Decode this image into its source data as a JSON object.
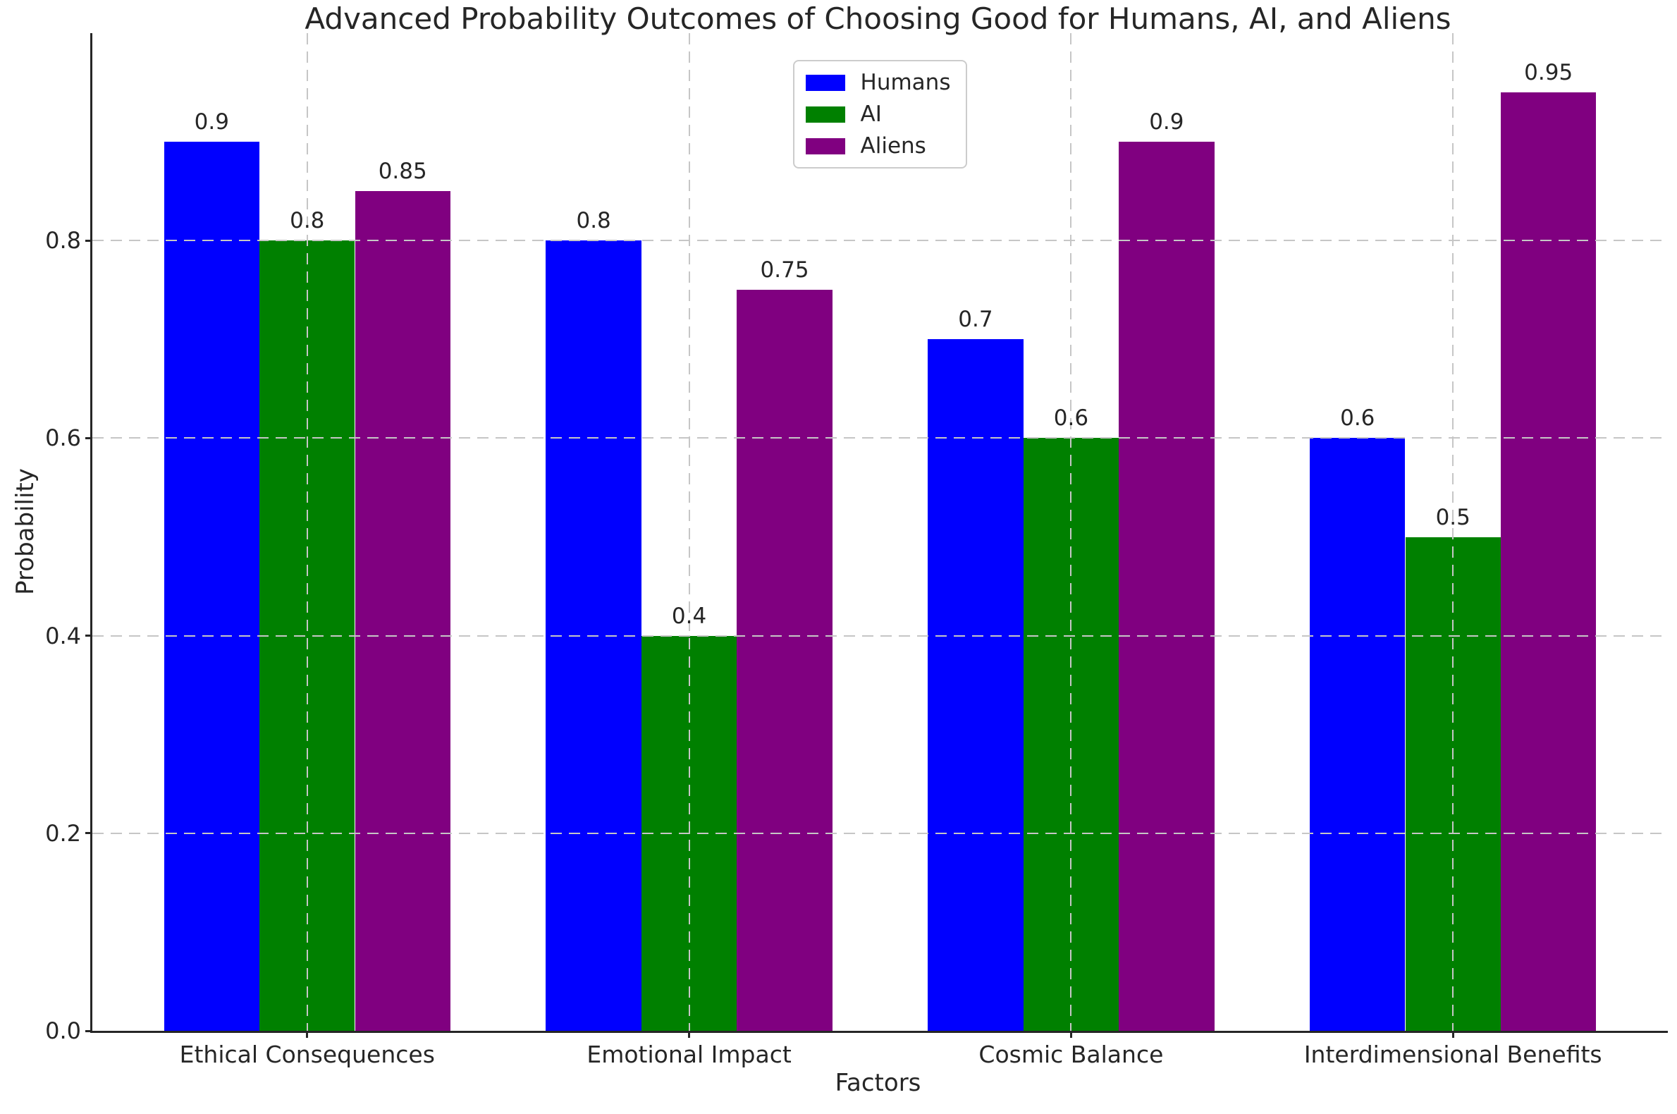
{
  "chart_data": {
    "type": "bar",
    "title": "Advanced Probability Outcomes of Choosing Good for Humans, AI, and Aliens",
    "xlabel": "Factors",
    "ylabel": "Probability",
    "categories": [
      "Ethical Consequences",
      "Emotional Impact",
      "Cosmic Balance",
      "Interdimensional Benefits"
    ],
    "series": [
      {
        "name": "Humans",
        "color": "#0000ff",
        "values": [
          0.9,
          0.8,
          0.7,
          0.6
        ]
      },
      {
        "name": "AI",
        "color": "#008000",
        "values": [
          0.8,
          0.4,
          0.6,
          0.5
        ]
      },
      {
        "name": "Aliens",
        "color": "#800080",
        "values": [
          0.85,
          0.75,
          0.9,
          0.95
        ]
      }
    ],
    "bar_width": 0.25,
    "xlim": [
      -0.5625,
      3.5625
    ],
    "ylim": [
      0,
      1.01
    ],
    "yticks": [
      0.0,
      0.2,
      0.4,
      0.6,
      0.8
    ],
    "grid": "dashed, both axes, drawn above bars",
    "legend_position": "upper center",
    "text_color": "#262626",
    "grid_color": "#c6c6c6"
  }
}
